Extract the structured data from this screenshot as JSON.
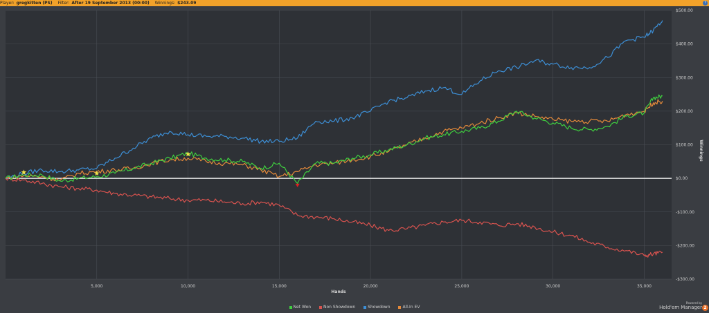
{
  "header": {
    "player_label": "Player:",
    "player_value": "gregkitten (PS)",
    "filter_label": "Filter:",
    "filter_value": "After 19 September 2013 (00:00)",
    "winnings_label": "Winnings:",
    "winnings_value": "$243.09",
    "help_icon": "?"
  },
  "branding": {
    "powered_by": "Powered by",
    "product": "Hold'em Manager",
    "version_badge": "2"
  },
  "chart_data": {
    "type": "line",
    "xlabel": "Hands",
    "ylabel": "Winnings",
    "xlim": [
      0,
      36500
    ],
    "ylim": [
      -300,
      500
    ],
    "xticks": [
      5000,
      10000,
      15000,
      20000,
      25000,
      30000,
      35000
    ],
    "xtick_labels": [
      "5,000",
      "10,000",
      "15,000",
      "20,000",
      "25,000",
      "30,000",
      "35,000"
    ],
    "yticks": [
      500,
      400,
      300,
      200,
      100,
      0,
      -100,
      -200,
      -300
    ],
    "ytick_labels": [
      "$500.00",
      "$400.00",
      "$300.00",
      "$200.00",
      "$100.00",
      "$0.00",
      "-$100.00",
      "-$200.00",
      "-$300.00"
    ],
    "grid": true,
    "legend_position": "bottom-center",
    "series": [
      {
        "name": "Net Won",
        "color": "#3fcf3f",
        "x": [
          0,
          1000,
          2000,
          3000,
          4000,
          5000,
          6000,
          7000,
          8000,
          9000,
          10000,
          11000,
          12000,
          13000,
          14000,
          15000,
          16000,
          17000,
          18000,
          19000,
          20000,
          21000,
          22000,
          23000,
          24000,
          25000,
          26000,
          27000,
          28000,
          29000,
          30000,
          31000,
          32000,
          33000,
          34000,
          35000,
          35500,
          36000
        ],
        "y": [
          0,
          10,
          10,
          -8,
          0,
          5,
          15,
          30,
          45,
          60,
          75,
          60,
          55,
          50,
          30,
          45,
          -15,
          45,
          45,
          60,
          70,
          85,
          100,
          120,
          130,
          140,
          150,
          170,
          200,
          180,
          165,
          150,
          145,
          155,
          185,
          195,
          240,
          245
        ]
      },
      {
        "name": "Non Showdown",
        "color": "#d9534f",
        "x": [
          0,
          1000,
          2000,
          3000,
          4000,
          5000,
          6000,
          7000,
          8000,
          9000,
          10000,
          11000,
          12000,
          13000,
          14000,
          15000,
          16000,
          17000,
          18000,
          19000,
          20000,
          21000,
          22000,
          23000,
          24000,
          25000,
          26000,
          27000,
          28000,
          29000,
          30000,
          31000,
          32000,
          33000,
          34000,
          35000,
          35500,
          36000
        ],
        "y": [
          0,
          -5,
          -15,
          -25,
          -30,
          -35,
          -45,
          -50,
          -55,
          -60,
          -65,
          -65,
          -70,
          -75,
          -70,
          -80,
          -110,
          -115,
          -120,
          -130,
          -140,
          -155,
          -150,
          -140,
          -130,
          -125,
          -130,
          -140,
          -135,
          -145,
          -160,
          -170,
          -190,
          -205,
          -215,
          -230,
          -225,
          -220
        ]
      },
      {
        "name": "Showdown",
        "color": "#3d8fd6",
        "x": [
          0,
          1000,
          2000,
          3000,
          4000,
          5000,
          6000,
          7000,
          8000,
          9000,
          10000,
          11000,
          12000,
          13000,
          14000,
          15000,
          16000,
          17000,
          18000,
          19000,
          20000,
          21000,
          22000,
          23000,
          24000,
          25000,
          26000,
          27000,
          28000,
          29000,
          30000,
          31000,
          32000,
          33000,
          34000,
          35000,
          35500,
          36000
        ],
        "y": [
          0,
          15,
          25,
          20,
          25,
          30,
          60,
          90,
          120,
          140,
          130,
          125,
          125,
          120,
          110,
          110,
          120,
          170,
          170,
          180,
          200,
          230,
          240,
          260,
          270,
          250,
          290,
          320,
          330,
          350,
          340,
          330,
          330,
          360,
          410,
          420,
          440,
          470
        ]
      },
      {
        "name": "All-In EV",
        "color": "#e58a3a",
        "x": [
          0,
          1000,
          2000,
          3000,
          4000,
          5000,
          6000,
          7000,
          8000,
          9000,
          10000,
          11000,
          12000,
          13000,
          14000,
          15000,
          16000,
          17000,
          18000,
          19000,
          20000,
          21000,
          22000,
          23000,
          24000,
          25000,
          26000,
          27000,
          28000,
          29000,
          30000,
          31000,
          32000,
          33000,
          34000,
          35000,
          35500,
          36000
        ],
        "y": [
          0,
          8,
          5,
          -5,
          15,
          20,
          25,
          30,
          45,
          55,
          60,
          50,
          45,
          40,
          25,
          5,
          20,
          40,
          45,
          55,
          65,
          80,
          100,
          120,
          140,
          150,
          165,
          180,
          195,
          185,
          175,
          170,
          170,
          170,
          190,
          200,
          225,
          230
        ]
      }
    ],
    "markers": [
      {
        "name": "star",
        "color": "#f2e44a",
        "x": 1000,
        "y": 18
      },
      {
        "name": "star",
        "color": "#f2e44a",
        "x": 5000,
        "y": 15
      },
      {
        "name": "star",
        "color": "#f2e44a",
        "x": 10000,
        "y": 72
      },
      {
        "name": "down-triangle",
        "color": "#e02020",
        "x": 16000,
        "y": -20
      }
    ]
  },
  "icons": {
    "star_marker": "star-icon",
    "low_marker": "triangle-down-icon",
    "help": "help-icon"
  }
}
